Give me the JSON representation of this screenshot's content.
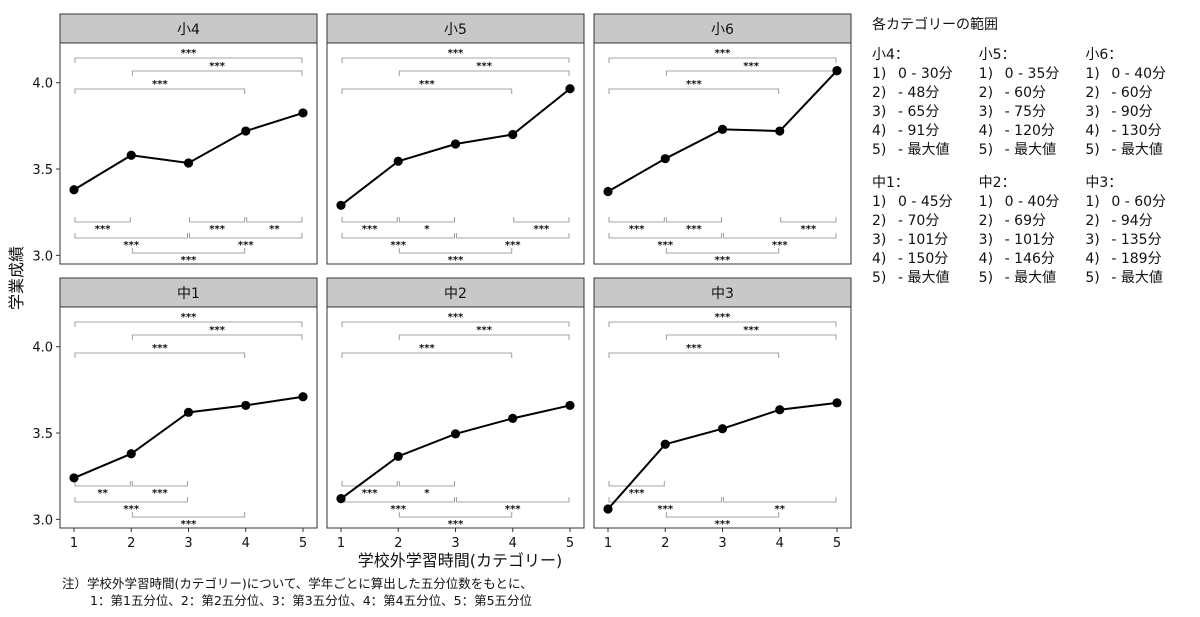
{
  "chart_data": {
    "type": "line",
    "ylabel": "学業成績",
    "xlabel": "学校外学習時間(カテゴリー)",
    "x": [
      1,
      2,
      3,
      4,
      5
    ],
    "x_ticks": [
      "1",
      "2",
      "3",
      "4",
      "5"
    ],
    "ylim": [
      2.95,
      4.23
    ],
    "y_ticks": [
      3.0,
      3.5,
      4.0
    ],
    "y_tick_labels": [
      "3.0",
      "3.5",
      "4.0"
    ],
    "grid": false,
    "panels": [
      {
        "title": "小4",
        "values": [
          3.38,
          3.58,
          3.535,
          3.72,
          3.825
        ],
        "brackets_top": [
          {
            "from": 1,
            "to": 5,
            "label": "***"
          },
          {
            "from": 2,
            "to": 5,
            "label": "***"
          },
          {
            "from": 1,
            "to": 4,
            "label": "***"
          }
        ],
        "brackets_bottom": [
          {
            "from": 1,
            "to": 2,
            "label": "***"
          },
          {
            "from": 3,
            "to": 4,
            "label": "***"
          },
          {
            "from": 4,
            "to": 5,
            "label": "**"
          },
          {
            "from": 1,
            "to": 3,
            "label": "***"
          },
          {
            "from": 3,
            "to": 5,
            "label": "***"
          },
          {
            "from": 2,
            "to": 4,
            "label": "***"
          }
        ]
      },
      {
        "title": "小5",
        "values": [
          3.29,
          3.545,
          3.645,
          3.7,
          3.965
        ],
        "brackets_top": [
          {
            "from": 1,
            "to": 5,
            "label": "***"
          },
          {
            "from": 2,
            "to": 5,
            "label": "***"
          },
          {
            "from": 1,
            "to": 4,
            "label": "***"
          }
        ],
        "brackets_bottom": [
          {
            "from": 1,
            "to": 2,
            "label": "***"
          },
          {
            "from": 2,
            "to": 3,
            "label": "*"
          },
          {
            "from": 4,
            "to": 5,
            "label": "***"
          },
          {
            "from": 1,
            "to": 3,
            "label": "***"
          },
          {
            "from": 3,
            "to": 5,
            "label": "***"
          },
          {
            "from": 2,
            "to": 4,
            "label": "***"
          }
        ]
      },
      {
        "title": "小6",
        "values": [
          3.37,
          3.56,
          3.73,
          3.72,
          4.07
        ],
        "brackets_top": [
          {
            "from": 1,
            "to": 5,
            "label": "***"
          },
          {
            "from": 2,
            "to": 5,
            "label": "***"
          },
          {
            "from": 1,
            "to": 4,
            "label": "***"
          }
        ],
        "brackets_bottom": [
          {
            "from": 1,
            "to": 2,
            "label": "***"
          },
          {
            "from": 2,
            "to": 3,
            "label": "***"
          },
          {
            "from": 4,
            "to": 5,
            "label": "***"
          },
          {
            "from": 1,
            "to": 3,
            "label": "***"
          },
          {
            "from": 3,
            "to": 5,
            "label": "***"
          },
          {
            "from": 2,
            "to": 4,
            "label": "***"
          }
        ]
      },
      {
        "title": "中1",
        "values": [
          3.24,
          3.38,
          3.62,
          3.66,
          3.71
        ],
        "brackets_top": [
          {
            "from": 1,
            "to": 5,
            "label": "***"
          },
          {
            "from": 2,
            "to": 5,
            "label": "***"
          },
          {
            "from": 1,
            "to": 4,
            "label": "***"
          }
        ],
        "brackets_bottom": [
          {
            "from": 1,
            "to": 2,
            "label": "**"
          },
          {
            "from": 2,
            "to": 3,
            "label": "***"
          },
          {
            "from": 1,
            "to": 3,
            "label": "***"
          },
          {
            "from": 2,
            "to": 4,
            "label": "***"
          }
        ]
      },
      {
        "title": "中2",
        "values": [
          3.12,
          3.365,
          3.495,
          3.585,
          3.66
        ],
        "brackets_top": [
          {
            "from": 1,
            "to": 5,
            "label": "***"
          },
          {
            "from": 2,
            "to": 5,
            "label": "***"
          },
          {
            "from": 1,
            "to": 4,
            "label": "***"
          }
        ],
        "brackets_bottom": [
          {
            "from": 1,
            "to": 2,
            "label": "***"
          },
          {
            "from": 2,
            "to": 3,
            "label": "*"
          },
          {
            "from": 1,
            "to": 3,
            "label": "***"
          },
          {
            "from": 3,
            "to": 5,
            "label": "***"
          },
          {
            "from": 2,
            "to": 4,
            "label": "***"
          }
        ]
      },
      {
        "title": "中3",
        "values": [
          3.06,
          3.435,
          3.525,
          3.635,
          3.675
        ],
        "brackets_top": [
          {
            "from": 1,
            "to": 5,
            "label": "***"
          },
          {
            "from": 2,
            "to": 5,
            "label": "***"
          },
          {
            "from": 1,
            "to": 4,
            "label": "***"
          }
        ],
        "brackets_bottom": [
          {
            "from": 1,
            "to": 2,
            "label": "***"
          },
          {
            "from": 1,
            "to": 3,
            "label": "***"
          },
          {
            "from": 3,
            "to": 5,
            "label": "**"
          },
          {
            "from": 2,
            "to": 4,
            "label": "***"
          }
        ]
      }
    ]
  },
  "legend": {
    "title": "各カテゴリーの範囲",
    "blocks": [
      [
        {
          "head": "小4：",
          "rows": [
            [
              "1)",
              "0 - 30分"
            ],
            [
              "2)",
              "- 48分"
            ],
            [
              "3)",
              "- 65分"
            ],
            [
              "4)",
              "- 91分"
            ],
            [
              "5)",
              "- 最大値"
            ]
          ]
        },
        {
          "head": "小5：",
          "rows": [
            [
              "1)",
              "0 - 35分"
            ],
            [
              "2)",
              "- 60分"
            ],
            [
              "3)",
              "- 75分"
            ],
            [
              "4)",
              "- 120分"
            ],
            [
              "5)",
              "- 最大値"
            ]
          ]
        },
        {
          "head": "小6：",
          "rows": [
            [
              "1)",
              "0 - 40分"
            ],
            [
              "2)",
              "- 60分"
            ],
            [
              "3)",
              "- 90分"
            ],
            [
              "4)",
              "- 130分"
            ],
            [
              "5)",
              "- 最大値"
            ]
          ]
        }
      ],
      [
        {
          "head": "中1：",
          "rows": [
            [
              "1)",
              "0 - 45分"
            ],
            [
              "2)",
              "- 70分"
            ],
            [
              "3)",
              "- 101分"
            ],
            [
              "4)",
              "- 150分"
            ],
            [
              "5)",
              "- 最大値"
            ]
          ]
        },
        {
          "head": "中2：",
          "rows": [
            [
              "1)",
              "0 - 40分"
            ],
            [
              "2)",
              "- 69分"
            ],
            [
              "3)",
              "- 101分"
            ],
            [
              "4)",
              "- 146分"
            ],
            [
              "5)",
              "- 最大値"
            ]
          ]
        },
        {
          "head": "中3：",
          "rows": [
            [
              "1)",
              "0 - 60分"
            ],
            [
              "2)",
              "- 94分"
            ],
            [
              "3)",
              "- 135分"
            ],
            [
              "4)",
              "- 189分"
            ],
            [
              "5)",
              "- 最大値"
            ]
          ]
        }
      ]
    ]
  },
  "note": {
    "line1": "注）学校外学習時間(カテゴリー)について、学年ごとに算出した五分位数をもとに、",
    "line2": "1：第1五分位、2：第2五分位、3：第3五分位、4：第4五分位、5：第5五分位"
  }
}
